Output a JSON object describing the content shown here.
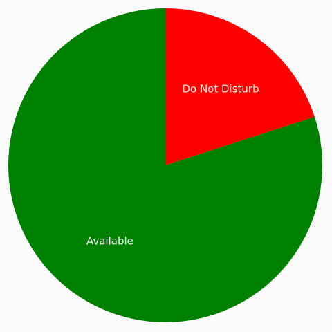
{
  "chart_data": {
    "type": "pie",
    "title": "",
    "slices": [
      {
        "label": "Do Not Disturb",
        "value": 20,
        "color": "#ff0000"
      },
      {
        "label": "Available",
        "value": 80,
        "color": "#008000"
      }
    ],
    "start_angle": "top",
    "direction": "clockwise",
    "legend": "none"
  }
}
